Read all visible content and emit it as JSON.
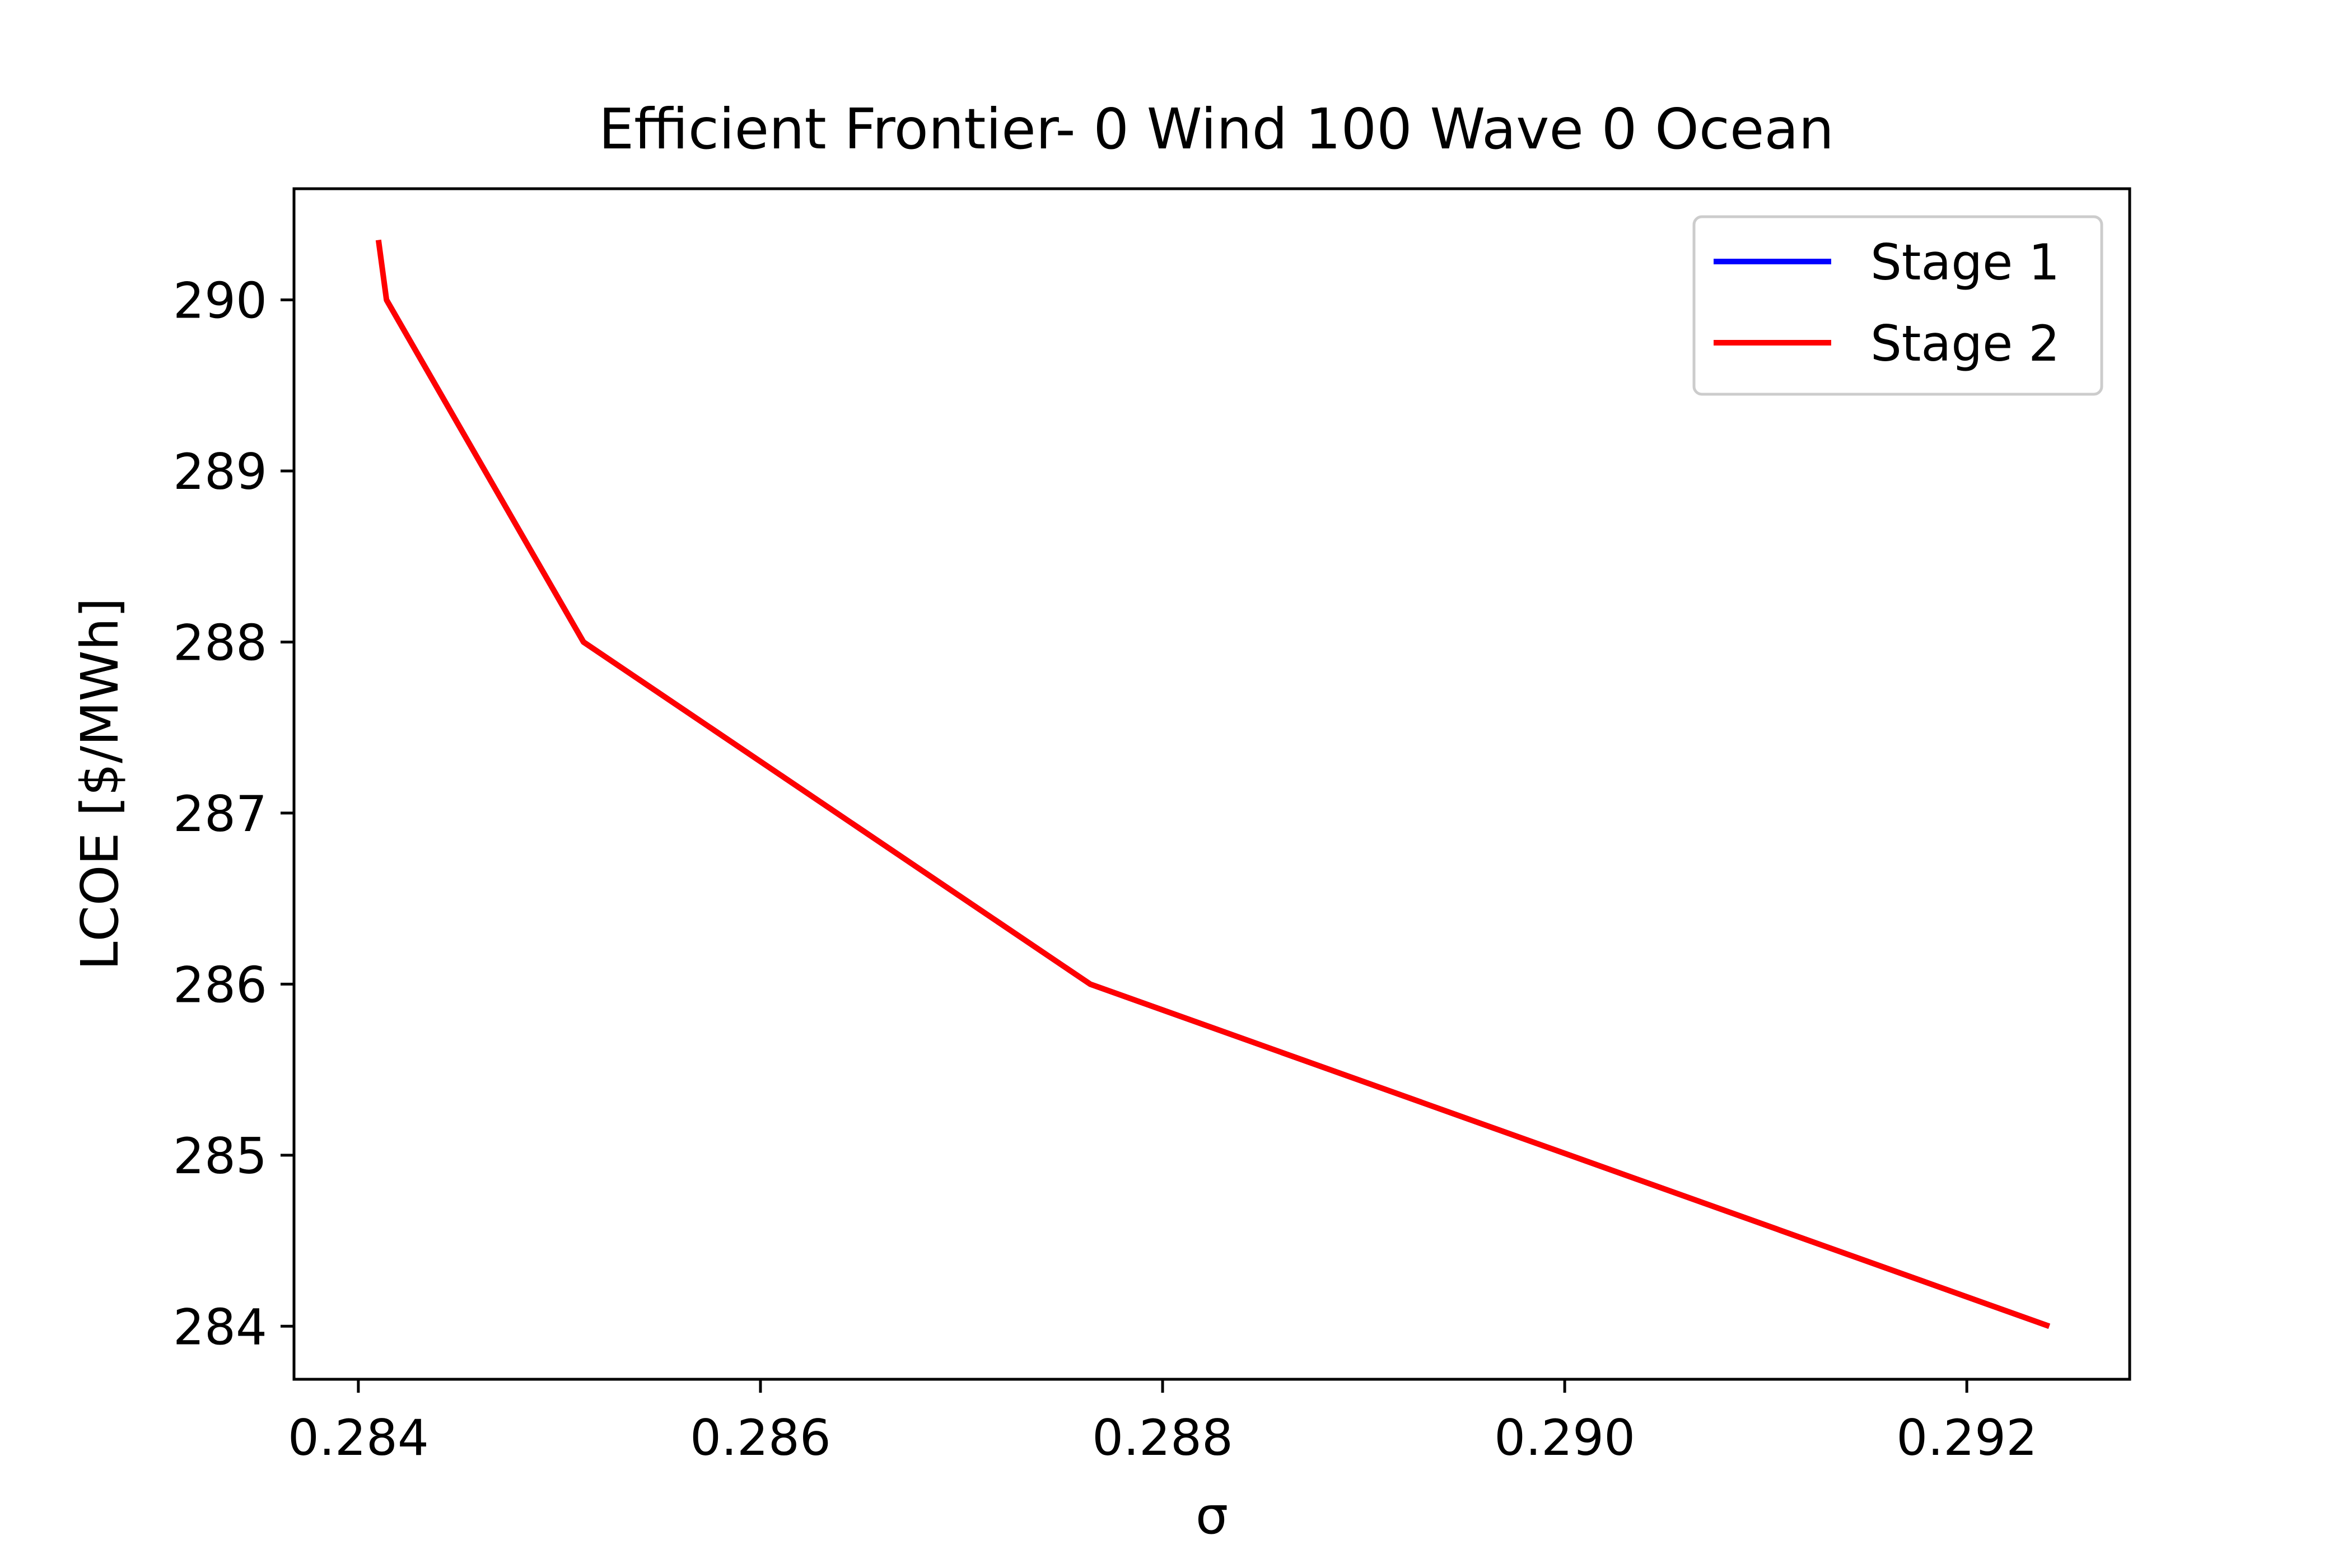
{
  "chart_data": {
    "type": "line",
    "title": "Efficient Frontier- 0 Wind 100 Wave 0 Ocean",
    "xlabel": "σ",
    "ylabel": "LCOE [$/MWh]",
    "xlim": [
      0.28368,
      0.29281
    ],
    "ylim": [
      283.69,
      290.65
    ],
    "xticks": [
      0.284,
      0.286,
      0.288,
      0.29,
      0.292
    ],
    "xtick_labels": [
      "0.284",
      "0.286",
      "0.288",
      "0.290",
      "0.292"
    ],
    "yticks": [
      284,
      285,
      286,
      287,
      288,
      289,
      290
    ],
    "ytick_labels": [
      "284",
      "285",
      "286",
      "287",
      "288",
      "289",
      "290"
    ],
    "grid": false,
    "legend_position": "top-right",
    "series": [
      {
        "name": "Stage 1",
        "color": "#0000ff",
        "x": [
          0.28414,
          0.28512,
          0.28764,
          0.29241
        ],
        "y": [
          290.0,
          288.0,
          286.0,
          284.0
        ]
      },
      {
        "name": "Stage 2",
        "color": "#ff0000",
        "x": [
          0.2841,
          0.28414,
          0.28512,
          0.28764,
          0.29241
        ],
        "y": [
          290.35,
          290.0,
          288.0,
          286.0,
          284.0
        ]
      }
    ]
  }
}
